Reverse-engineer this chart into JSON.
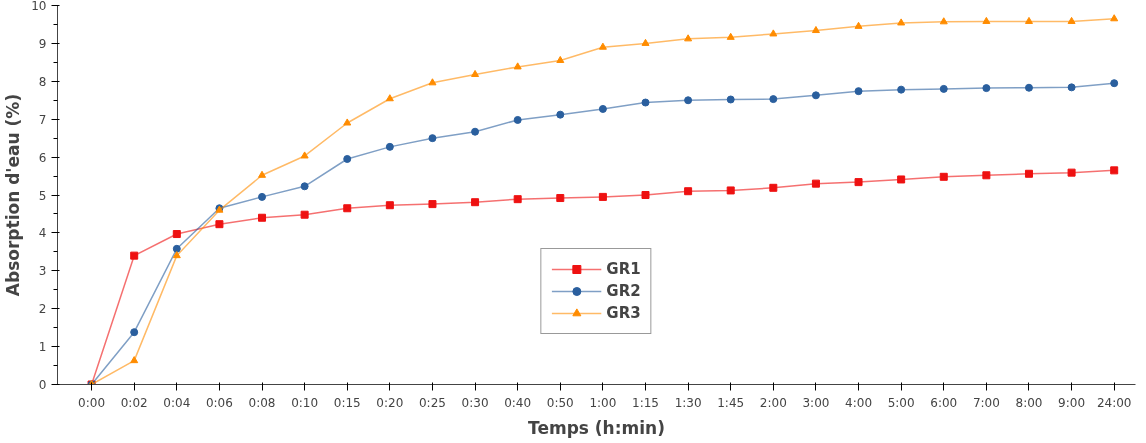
{
  "chart_data": {
    "type": "line",
    "xlabel": "Temps (h:min)",
    "ylabel": "Absorption d'eau (%)",
    "categories": [
      "0:00",
      "0:02",
      "0:04",
      "0:06",
      "0:08",
      "0:10",
      "0:15",
      "0:20",
      "0:25",
      "0:30",
      "0:40",
      "0:50",
      "1:00",
      "1:15",
      "1:30",
      "1:45",
      "2:00",
      "3:00",
      "4:00",
      "5:00",
      "6:00",
      "7:00",
      "8:00",
      "9:00",
      "24:00"
    ],
    "series": [
      {
        "name": "GR1",
        "color": "#ee1111",
        "marker": "square",
        "values": [
          0,
          3.4,
          3.97,
          4.23,
          4.4,
          4.48,
          4.65,
          4.73,
          4.76,
          4.81,
          4.89,
          4.92,
          4.95,
          5.0,
          5.1,
          5.12,
          5.19,
          5.3,
          5.34,
          5.41,
          5.48,
          5.52,
          5.56,
          5.59,
          5.65
        ]
      },
      {
        "name": "GR2",
        "color": "#2a5f9e",
        "marker": "circle",
        "values": [
          0,
          1.38,
          3.58,
          4.65,
          4.95,
          5.23,
          5.95,
          6.27,
          6.5,
          6.67,
          6.98,
          7.12,
          7.27,
          7.44,
          7.5,
          7.52,
          7.53,
          7.63,
          7.74,
          7.78,
          7.8,
          7.82,
          7.83,
          7.84,
          7.95
        ]
      },
      {
        "name": "GR3",
        "color": "#ff8c00",
        "marker": "triangle",
        "values": [
          0,
          0.63,
          3.4,
          4.6,
          5.52,
          6.03,
          6.9,
          7.54,
          7.96,
          8.18,
          8.38,
          8.55,
          8.9,
          9.0,
          9.12,
          9.16,
          9.25,
          9.34,
          9.45,
          9.54,
          9.57,
          9.58,
          9.58,
          9.58,
          9.65
        ]
      }
    ],
    "ylim": [
      0,
      10
    ],
    "yticks": [
      0,
      1,
      2,
      3,
      4,
      5,
      6,
      7,
      8,
      9,
      10
    ],
    "grid": false,
    "legend": "bottom"
  }
}
